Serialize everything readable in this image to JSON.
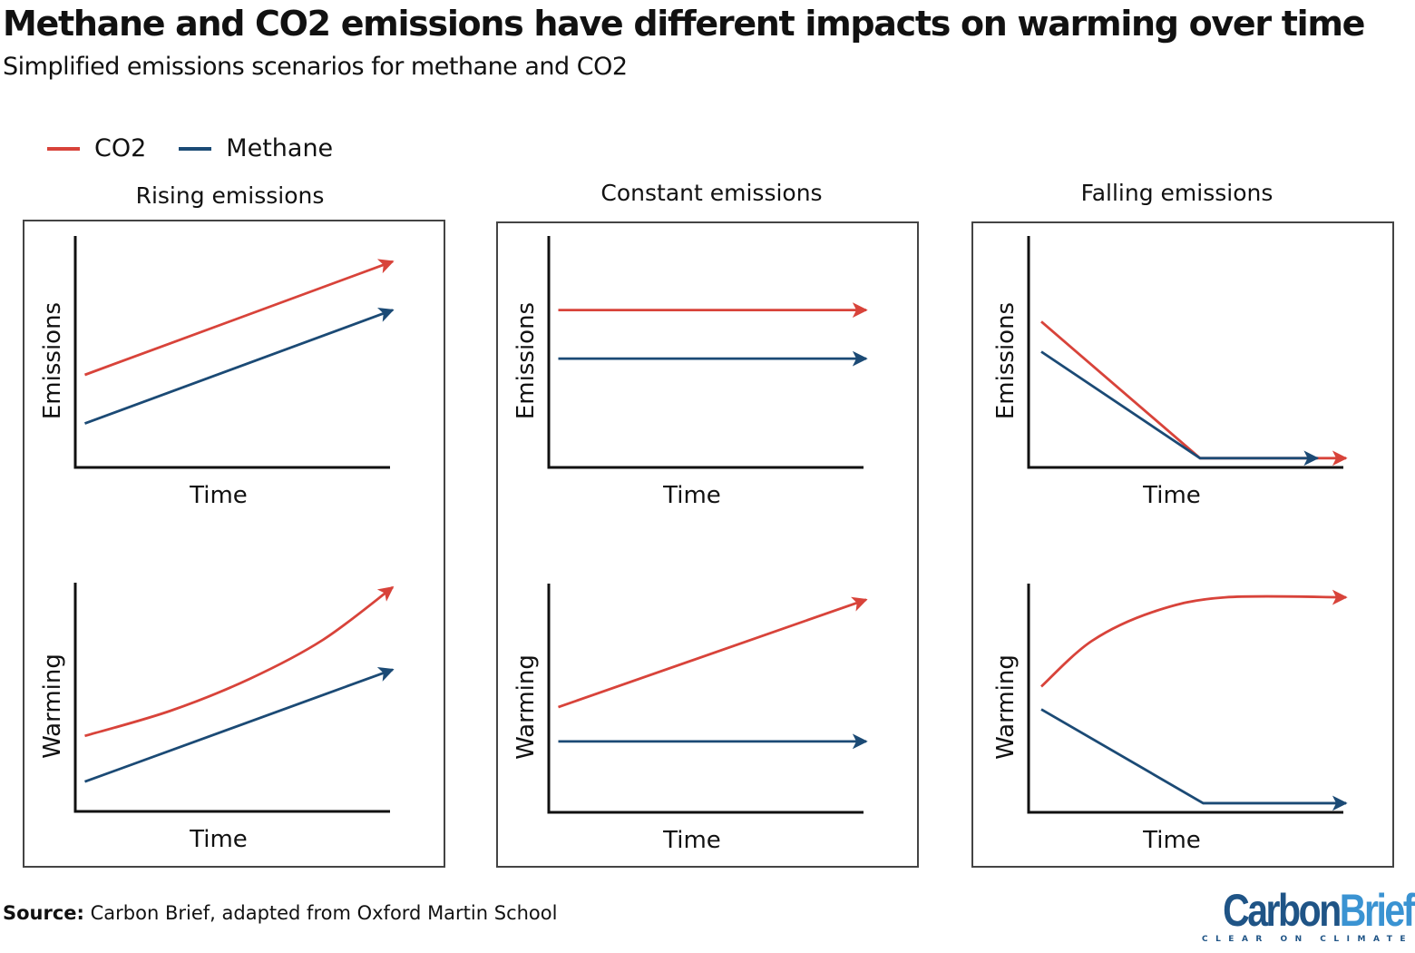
{
  "header": {
    "title": "Methane and CO2 emissions have different impacts on warming over time",
    "subtitle": "Simplified emissions scenarios for methane and CO2"
  },
  "legend": [
    {
      "label": "CO2",
      "color": "#d8433a"
    },
    {
      "label": "Methane",
      "color": "#1b4a75"
    }
  ],
  "footer": {
    "source_label": "Source:",
    "source_text": " Carbon Brief, adapted from Oxford Martin School"
  },
  "logo": {
    "carbon": "Carbon",
    "brief": "Brief",
    "tagline": "CLEAR ON CLIMATE"
  },
  "chart_data": {
    "type": "line",
    "title": "Methane and CO2 emissions have different impacts on warming over time",
    "subtitle": "Simplified emissions scenarios for methane and CO2",
    "note": "Schematic figure; values are normalized (0 = axis origin, 1 = top/right of plot area) with no numeric ticks.",
    "colors": {
      "CO2": "#d8433a",
      "Methane": "#1b4a75"
    },
    "columns": [
      "Rising emissions",
      "Constant emissions",
      "Falling emissions"
    ],
    "panels": [
      {
        "column": "Rising emissions",
        "ylabel": "Emissions",
        "xlabel": "Time",
        "series": [
          {
            "name": "CO2",
            "points": [
              [
                0.03,
                0.4
              ],
              [
                1.0,
                0.89
              ]
            ]
          },
          {
            "name": "Methane",
            "points": [
              [
                0.03,
                0.19
              ],
              [
                1.0,
                0.68
              ]
            ]
          }
        ]
      },
      {
        "column": "Rising emissions",
        "ylabel": "Warming",
        "xlabel": "Time",
        "series": [
          {
            "name": "CO2",
            "curve": true,
            "points": [
              [
                0.03,
                0.33
              ],
              [
                0.3,
                0.44
              ],
              [
                0.55,
                0.58
              ],
              [
                0.78,
                0.75
              ],
              [
                1.0,
                0.98
              ]
            ]
          },
          {
            "name": "Methane",
            "points": [
              [
                0.03,
                0.13
              ],
              [
                1.0,
                0.62
              ]
            ]
          }
        ]
      },
      {
        "column": "Constant emissions",
        "ylabel": "Emissions",
        "xlabel": "Time",
        "series": [
          {
            "name": "CO2",
            "points": [
              [
                0.03,
                0.68
              ],
              [
                1.0,
                0.68
              ]
            ]
          },
          {
            "name": "Methane",
            "points": [
              [
                0.03,
                0.47
              ],
              [
                1.0,
                0.47
              ]
            ]
          }
        ]
      },
      {
        "column": "Constant emissions",
        "ylabel": "Warming",
        "xlabel": "Time",
        "series": [
          {
            "name": "CO2",
            "points": [
              [
                0.03,
                0.46
              ],
              [
                1.0,
                0.93
              ]
            ]
          },
          {
            "name": "Methane",
            "points": [
              [
                0.03,
                0.31
              ],
              [
                1.0,
                0.31
              ]
            ]
          }
        ]
      },
      {
        "column": "Falling emissions",
        "ylabel": "Emissions",
        "xlabel": "Time",
        "series": [
          {
            "name": "CO2",
            "points": [
              [
                0.04,
                0.63
              ],
              [
                0.54,
                0.04
              ],
              [
                1.0,
                0.04
              ]
            ]
          },
          {
            "name": "Methane",
            "points": [
              [
                0.04,
                0.5
              ],
              [
                0.54,
                0.04
              ],
              [
                0.91,
                0.04
              ]
            ]
          }
        ]
      },
      {
        "column": "Falling emissions",
        "ylabel": "Warming",
        "xlabel": "Time",
        "series": [
          {
            "name": "CO2",
            "curve": true,
            "points": [
              [
                0.04,
                0.55
              ],
              [
                0.2,
                0.75
              ],
              [
                0.4,
                0.88
              ],
              [
                0.62,
                0.94
              ],
              [
                1.0,
                0.94
              ]
            ]
          },
          {
            "name": "Methane",
            "points": [
              [
                0.04,
                0.45
              ],
              [
                0.55,
                0.04
              ],
              [
                1.0,
                0.04
              ]
            ]
          }
        ]
      }
    ],
    "grid": false,
    "legend_position": "top-left"
  }
}
